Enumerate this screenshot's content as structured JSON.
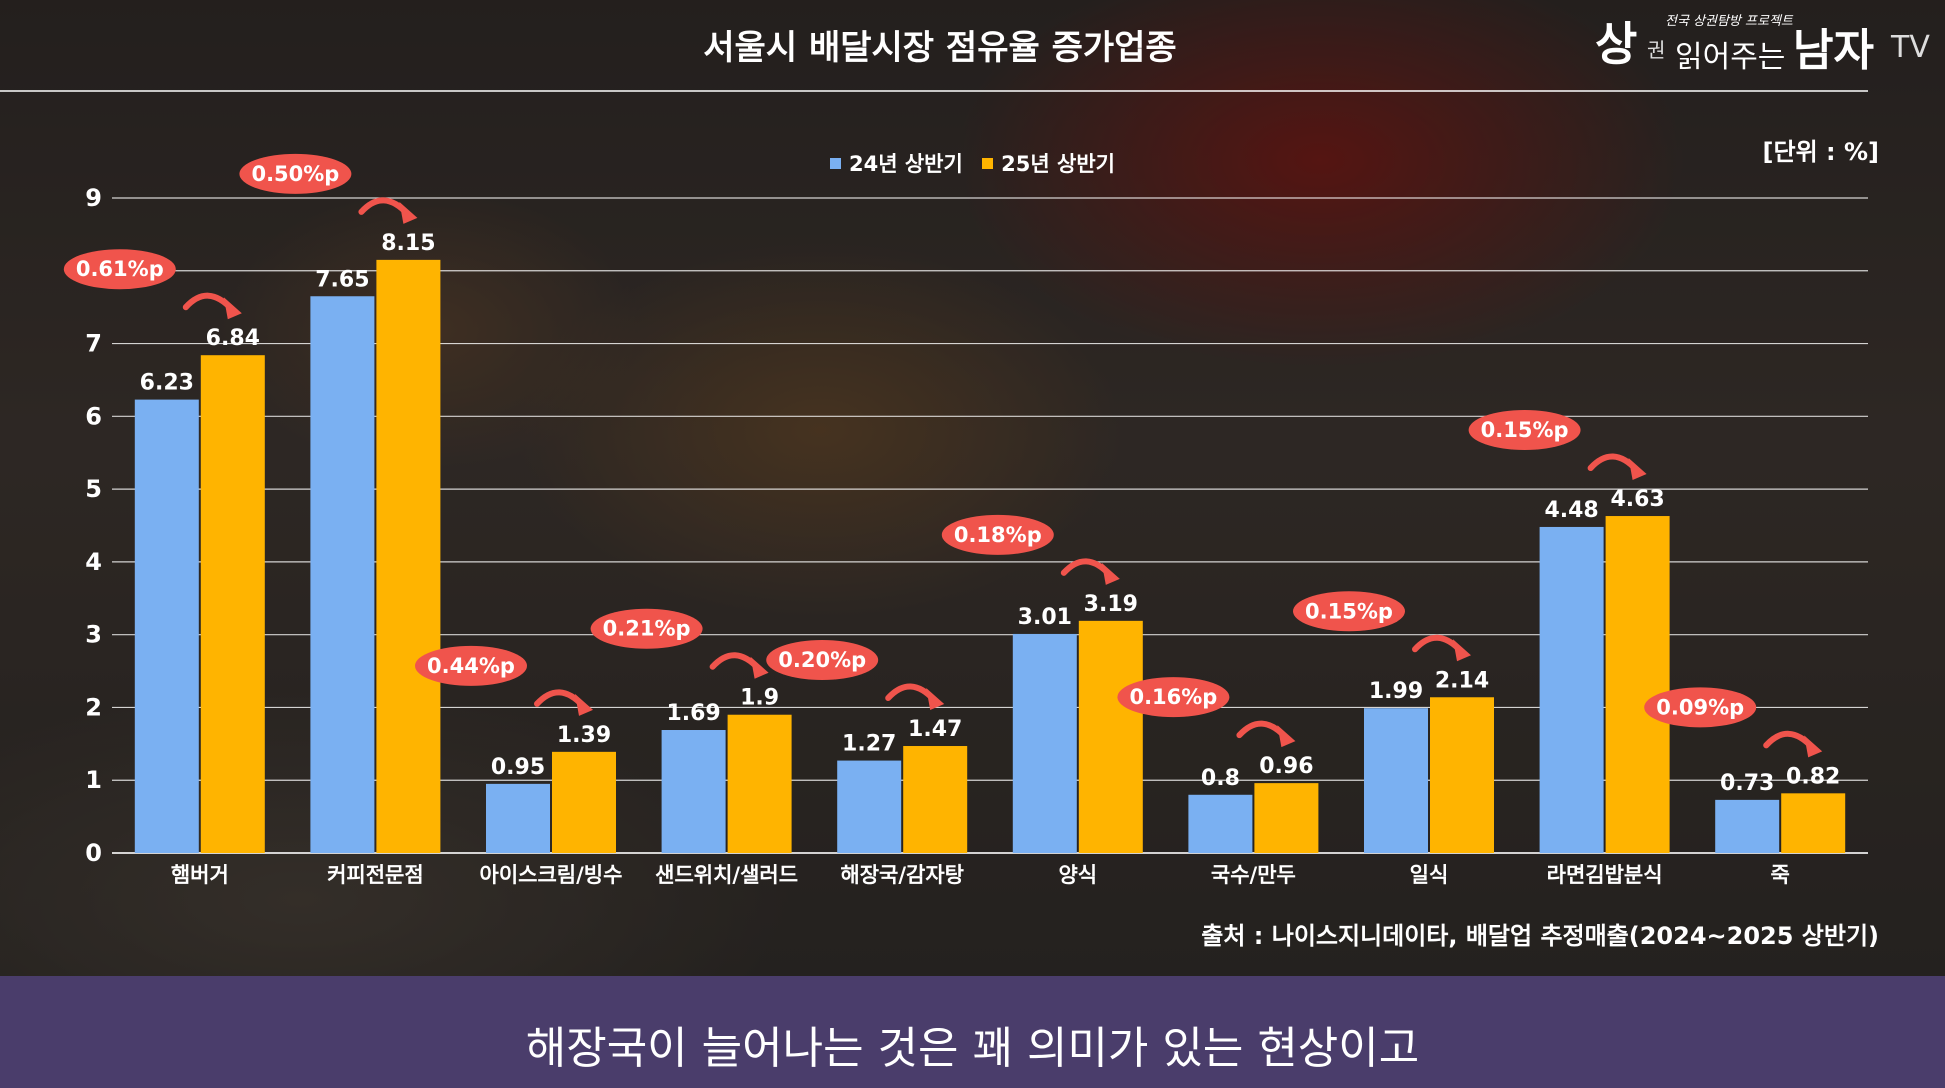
{
  "title": "서울시 배달시장 점유율 증가업종",
  "logo": {
    "sang": "상",
    "gwon": "권",
    "slogan": "전국 상권탐방 프로젝트",
    "read": "읽어주는",
    "man": "남자",
    "tv": "TV"
  },
  "unit_label": "[단위 : %]",
  "source": "출처 : 나이스지니데이타, 배달업 추정매출(2024~2025 상반기)",
  "subtitle": "해장국이 늘어나는 것은 꽤 의미가 있는 현상이고",
  "colors": {
    "series_24": "#7ab0f2",
    "series_25": "#ffb400",
    "badge": "#f0544c",
    "subtitle_bar": "#4a3d6b"
  },
  "chart_data": {
    "type": "bar",
    "title": "서울시 배달시장 점유율 증가업종",
    "categories": [
      "햄버거",
      "커피전문점",
      "아이스크림/빙수",
      "샌드위치/샐러드",
      "해장국/감자탕",
      "양식",
      "국수/만두",
      "일식",
      "라면김밥분식",
      "죽"
    ],
    "series": [
      {
        "name": "24년 상반기",
        "values": [
          6.23,
          7.65,
          0.95,
          1.69,
          1.27,
          3.01,
          0.8,
          1.99,
          4.48,
          0.73
        ]
      },
      {
        "name": "25년 상반기",
        "values": [
          6.84,
          8.15,
          1.39,
          1.9,
          1.47,
          3.19,
          0.96,
          2.14,
          4.63,
          0.82
        ]
      }
    ],
    "value_labels": [
      [
        "6.23",
        "7.65",
        "0.95",
        "1.69",
        "1.27",
        "3.01",
        "0.8",
        "1.99",
        "4.48",
        "0.73"
      ],
      [
        "6.84",
        "8.15",
        "1.39",
        "1.9",
        "1.47",
        "3.19",
        "0.96",
        "2.14",
        "4.63",
        "0.82"
      ]
    ],
    "increase_labels": [
      "0.61%p",
      "0.50%p",
      "0.44%p",
      "0.21%p",
      "0.20%p",
      "0.18%p",
      "0.16%p",
      "0.15%p",
      "0.15%p",
      "0.09%p"
    ],
    "ylim": [
      0,
      9
    ],
    "yticks": [
      0,
      1,
      2,
      3,
      4,
      5,
      6,
      7,
      8,
      9
    ],
    "ytick_labels": [
      "0",
      "1",
      "2",
      "3",
      "4",
      "5",
      "6",
      "7",
      "",
      "9"
    ],
    "grid": true,
    "legend_position": "top-center"
  }
}
